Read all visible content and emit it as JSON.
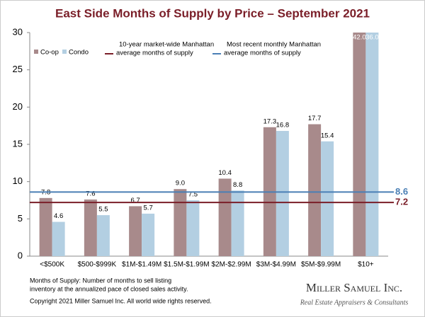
{
  "chart_data": {
    "type": "bar",
    "title": "East Side Months of Supply by Price – September 2021",
    "categories": [
      "<$500K",
      "$500-$999K",
      "$1M-$1.49M",
      "$1.5M-$1.99M",
      "$2M-$2.99M",
      "$3M-$4.99M",
      "$5M-$9.99M",
      "$10+"
    ],
    "series": [
      {
        "name": "Co-op",
        "color": "#a88a8b",
        "values": [
          7.8,
          7.6,
          6.7,
          9.0,
          10.4,
          17.3,
          17.7,
          42.0
        ],
        "value_labels": [
          "7.8",
          "7.6",
          "6.7",
          "9.0",
          "10.4",
          "17.3",
          "17.7",
          "42.0"
        ]
      },
      {
        "name": "Condo",
        "color": "#b3cfe2",
        "values": [
          4.6,
          5.5,
          5.7,
          7.5,
          8.8,
          16.8,
          15.4,
          36.0
        ],
        "value_labels": [
          "4.6",
          "5.5",
          "5.7",
          "7.5",
          "8.8",
          "16.8",
          "15.4",
          "36.0"
        ]
      }
    ],
    "reference_lines": [
      {
        "name_lines": [
          "10-year  market-wide Manhattan",
          "average months of supply"
        ],
        "value": 7.2,
        "color": "#7a1e28"
      },
      {
        "name_lines": [
          "Most recent monthly Manhattan",
          "average months of supply"
        ],
        "value": 8.6,
        "color": "#4a7fb5"
      }
    ],
    "ylim": [
      0,
      30
    ],
    "yticks": [
      0,
      5,
      10,
      15,
      20,
      25,
      30
    ],
    "footnote_lines": [
      "Months of Supply: Number of months to sell listing",
      "inventory at the annualized pace of closed sales activity.",
      "Copyright 2021 Miller Samuel Inc.  All world wide rights reserved."
    ],
    "logo": {
      "name": "Miller Samuel Inc.",
      "tagline": "Real Estate Appraisers & Consultants"
    }
  }
}
